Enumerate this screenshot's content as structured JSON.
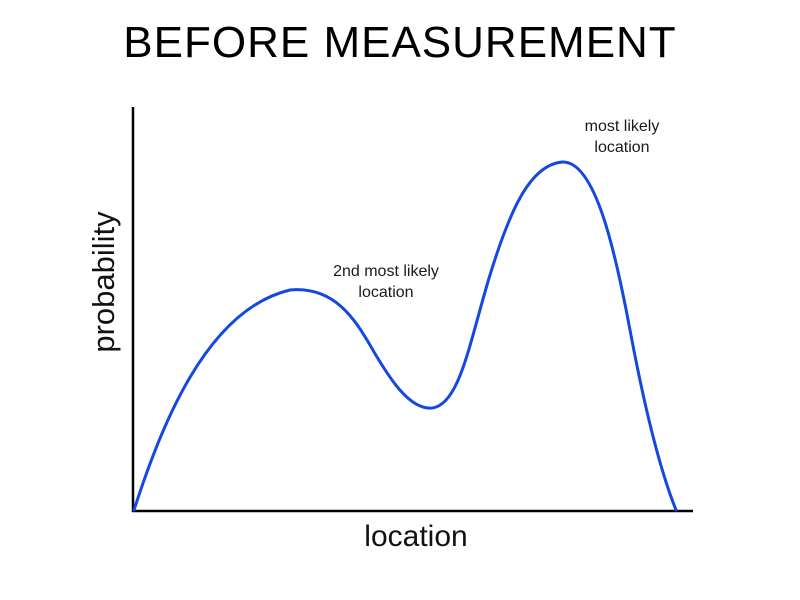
{
  "title": "BEFORE MEASUREMENT",
  "axes": {
    "xlabel": "location",
    "ylabel": "probability"
  },
  "annotations": {
    "second_peak": "2nd most likely\nlocation",
    "main_peak": "most likely\nlocation"
  },
  "colors": {
    "curve": "#1448e0",
    "axes": "#000000"
  }
}
